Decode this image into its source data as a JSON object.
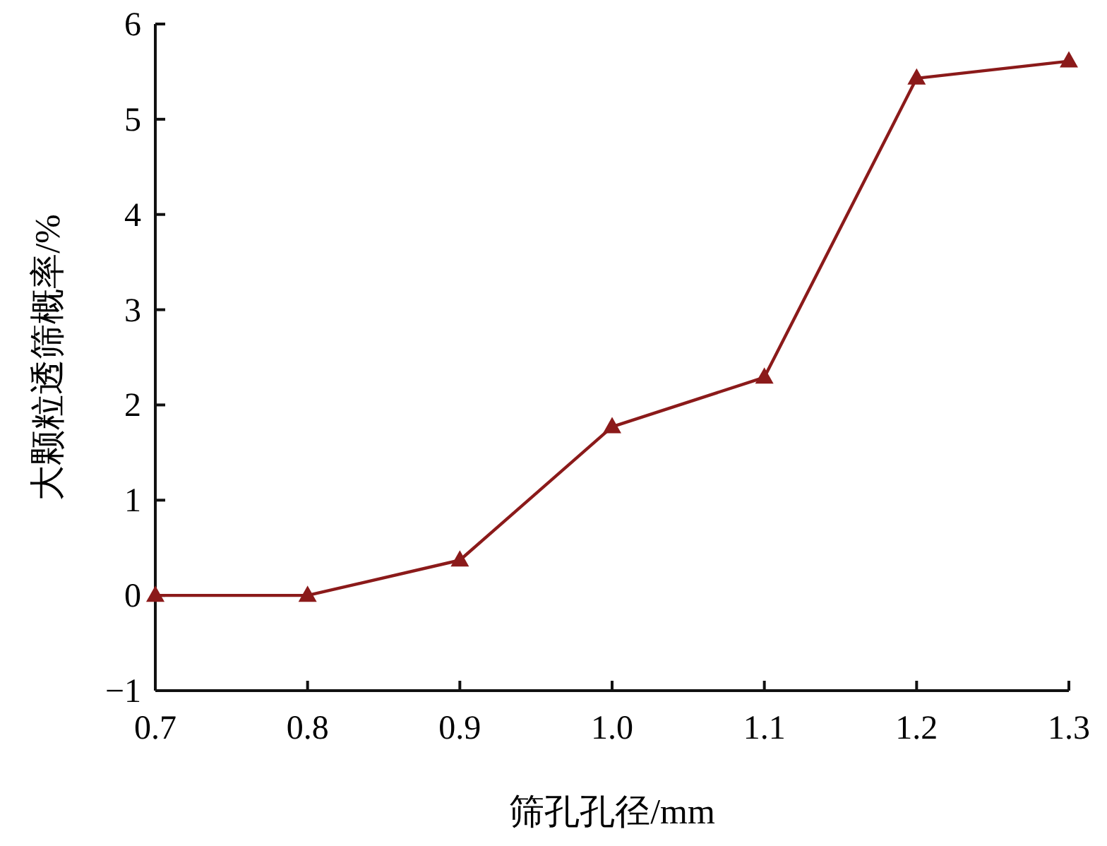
{
  "chart_data": {
    "type": "line",
    "xlabel": "筛孔孔径/mm",
    "ylabel": "大颗粒透筛概率/%",
    "x": [
      0.7,
      0.8,
      0.9,
      1.0,
      1.1,
      1.2,
      1.3
    ],
    "series": [
      {
        "color": "#8b1a1a",
        "values": [
          0,
          0,
          0.37,
          1.77,
          2.29,
          5.43,
          5.61
        ]
      }
    ],
    "marker": "triangle",
    "xlim": [
      0.7,
      1.3
    ],
    "xticks": [
      0.7,
      0.8,
      0.9,
      {
        "value": 1.0,
        "label": "1.0"
      },
      1.1,
      1.2,
      1.3
    ],
    "ylim": [
      -1,
      6
    ],
    "yticks": [
      {
        "value": -1,
        "label": "−1"
      },
      0,
      1,
      2,
      3,
      4,
      5,
      6
    ]
  }
}
